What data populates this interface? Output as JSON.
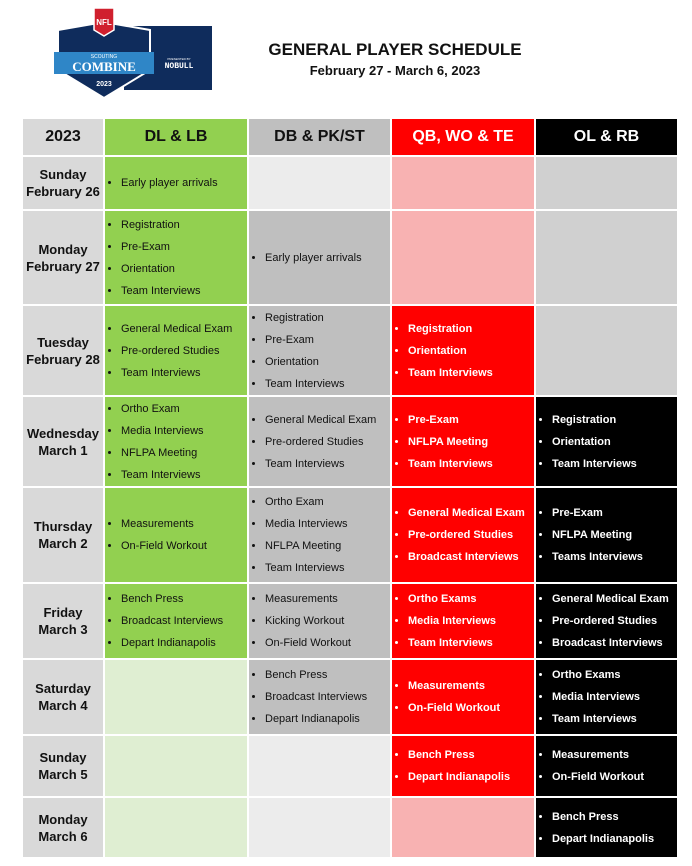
{
  "logo": {
    "text": [
      "NFL",
      "SCOUTING",
      "COMBINE",
      "2023",
      "PRESENTED BY",
      "NOBULL"
    ]
  },
  "header": {
    "title": "GENERAL PLAYER SCHEDULE",
    "subtitle": "February 27 - March 6, 2023"
  },
  "table": {
    "corner": "2023",
    "columns": [
      "DL & LB",
      "DB & PK/ST",
      "QB, WO & TE",
      "OL & RB"
    ],
    "colors": {
      "dl_lb": "#92d050",
      "db_pkst": "#bfbfbf",
      "qb_wo_te": "#ff0000",
      "ol_rb": "#000000",
      "day": "#d9d9d9"
    },
    "rows": [
      {
        "day": "Sunday",
        "date": "February 26",
        "cells": [
          [
            "Early player arrivals"
          ],
          [],
          [],
          []
        ]
      },
      {
        "day": "Monday",
        "date": "February 27",
        "cells": [
          [
            "Registration",
            "Pre-Exam",
            "Orientation",
            "Team Interviews"
          ],
          [
            "Early player arrivals"
          ],
          [],
          []
        ]
      },
      {
        "day": "Tuesday",
        "date": "February 28",
        "cells": [
          [
            "General Medical Exam",
            "Pre-ordered Studies",
            "Team Interviews"
          ],
          [
            "Registration",
            "Pre-Exam",
            "Orientation",
            "Team Interviews"
          ],
          [
            "Registration",
            "Orientation",
            "Team Interviews"
          ],
          []
        ]
      },
      {
        "day": "Wednesday",
        "date": "March 1",
        "cells": [
          [
            "Ortho Exam",
            "Media Interviews",
            "NFLPA Meeting",
            "Team Interviews"
          ],
          [
            "General Medical Exam",
            "Pre-ordered Studies",
            "Team Interviews"
          ],
          [
            "Pre-Exam",
            "NFLPA Meeting",
            "Team Interviews"
          ],
          [
            "Registration",
            "Orientation",
            "Team Interviews"
          ]
        ]
      },
      {
        "day": "Thursday",
        "date": "March 2",
        "cells": [
          [
            "Measurements",
            "On-Field Workout"
          ],
          [
            "Ortho Exam",
            "Media Interviews",
            "NFLPA Meeting",
            "Team Interviews"
          ],
          [
            "General Medical Exam",
            "Pre-ordered Studies",
            "Broadcast Interviews"
          ],
          [
            "Pre-Exam",
            "NFLPA Meeting",
            "Teams Interviews"
          ]
        ]
      },
      {
        "day": "Friday",
        "date": "March 3",
        "cells": [
          [
            "Bench Press",
            "Broadcast Interviews",
            "Depart Indianapolis"
          ],
          [
            "Measurements",
            "Kicking Workout",
            "On-Field Workout"
          ],
          [
            "Ortho Exams",
            "Media Interviews",
            "Team Interviews"
          ],
          [
            "General Medical Exam",
            "Pre-ordered Studies",
            "Broadcast Interviews"
          ]
        ]
      },
      {
        "day": "Saturday",
        "date": "March 4",
        "cells": [
          [],
          [
            "Bench Press",
            "Broadcast Interviews",
            "Depart Indianapolis"
          ],
          [
            "Measurements",
            "On-Field Workout"
          ],
          [
            "Ortho Exams",
            "Media Interviews",
            "Team Interviews"
          ]
        ]
      },
      {
        "day": "Sunday",
        "date": "March 5",
        "cells": [
          [],
          [],
          [
            "Bench Press",
            "Depart Indianapolis"
          ],
          [
            "Measurements",
            "On-Field Workout"
          ]
        ]
      },
      {
        "day": "Monday",
        "date": "March 6",
        "cells": [
          [],
          [],
          [],
          [
            "Bench Press",
            "Depart Indianapolis"
          ]
        ]
      }
    ]
  }
}
